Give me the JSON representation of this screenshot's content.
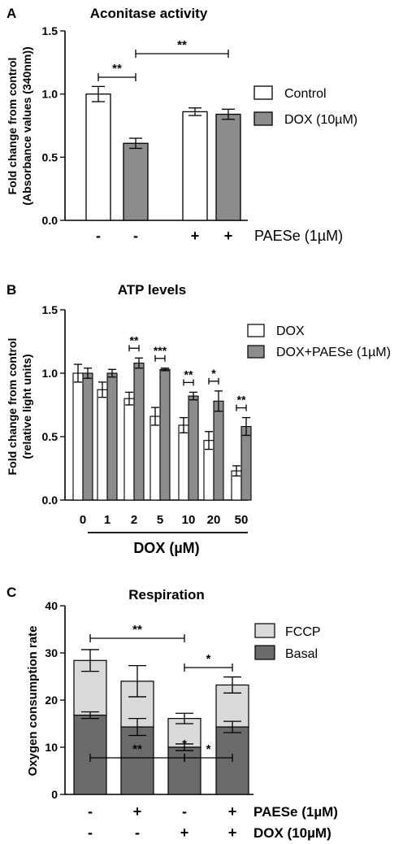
{
  "chart_data": [
    {
      "panel": "A",
      "type": "bar",
      "title": "Aconitase activity",
      "ylabel": "Fold change from control\n(Absorbance values (340nm))",
      "ylim": [
        0,
        1.5
      ],
      "yticks": [
        "0.0",
        "0.5",
        "1.0",
        "1.5"
      ],
      "bars": [
        {
          "group": "Control",
          "value": 1.0,
          "err": 0.06
        },
        {
          "group": "DOX (10µM)",
          "value": 0.61,
          "err": 0.04
        },
        {
          "group": "Control",
          "value": 0.86,
          "err": 0.03
        },
        {
          "group": "DOX (10µM)",
          "value": 0.84,
          "err": 0.04
        }
      ],
      "treatment_row": {
        "label": "PAESe (1µM)",
        "values": [
          "-",
          "-",
          "+",
          "+"
        ]
      },
      "legend": [
        {
          "name": "Control",
          "color": "#ffffff"
        },
        {
          "name": "DOX (10µM)",
          "color": "#8c8c8c"
        }
      ],
      "significance": [
        {
          "text": "**",
          "between": [
            0,
            1
          ]
        },
        {
          "text": "**",
          "between": [
            1,
            3
          ]
        }
      ]
    },
    {
      "panel": "B",
      "type": "bar",
      "title": "ATP levels",
      "ylabel": "Fold change from control\n(relative light units)",
      "xlabel": "DOX (µM)",
      "ylim": [
        0,
        1.5
      ],
      "yticks": [
        "0.0",
        "0.5",
        "1.0",
        "1.5"
      ],
      "categories": [
        "0",
        "1",
        "2",
        "5",
        "10",
        "20",
        "50"
      ],
      "series": [
        {
          "name": "DOX",
          "color": "#ffffff",
          "values": [
            1.0,
            0.87,
            0.8,
            0.66,
            0.59,
            0.47,
            0.23
          ],
          "err": [
            0.07,
            0.06,
            0.05,
            0.07,
            0.06,
            0.07,
            0.04
          ]
        },
        {
          "name": "DOX+PAESe (1µM)",
          "color": "#8c8c8c",
          "values": [
            1.0,
            1.0,
            1.08,
            1.03,
            0.82,
            0.78,
            0.58
          ],
          "err": [
            0.04,
            0.03,
            0.04,
            0.01,
            0.03,
            0.08,
            0.07
          ]
        }
      ],
      "significance": [
        {
          "category": 2,
          "text": "**"
        },
        {
          "category": 3,
          "text": "***"
        },
        {
          "category": 4,
          "text": "**"
        },
        {
          "category": 5,
          "text": "*"
        },
        {
          "category": 6,
          "text": "**"
        }
      ]
    },
    {
      "panel": "C",
      "type": "bar",
      "stacked": true,
      "title": "Respiration",
      "ylabel": "Oxygen consumption rate",
      "ylim": [
        0,
        40
      ],
      "yticks": [
        "0",
        "10",
        "20",
        "30",
        "40"
      ],
      "series": [
        {
          "name": "Basal",
          "color": "#6b6b6b",
          "values": [
            16.8,
            14.3,
            10.0,
            14.3
          ],
          "err": [
            0.7,
            1.8,
            0.7,
            1.2
          ]
        },
        {
          "name": "FCCP",
          "color": "#d9d9d9",
          "totals": [
            28.4,
            24.0,
            16.1,
            23.2
          ],
          "err": [
            2.3,
            3.3,
            1.1,
            1.7
          ]
        }
      ],
      "legend": [
        {
          "name": "FCCP",
          "color": "#d9d9d9"
        },
        {
          "name": "Basal",
          "color": "#6b6b6b"
        }
      ],
      "treatment_rows": [
        {
          "label": "PAESe (1µM)",
          "values": [
            "-",
            "+",
            "-",
            "+"
          ]
        },
        {
          "label": "DOX (10µM)",
          "values": [
            "-",
            "-",
            "+",
            "+"
          ]
        }
      ],
      "significance": [
        {
          "text": "**",
          "between": [
            0,
            2
          ],
          "level": "top"
        },
        {
          "text": "*",
          "between": [
            2,
            3
          ],
          "level": "top"
        },
        {
          "text": "**",
          "between": [
            0,
            2
          ],
          "level": "basal"
        },
        {
          "text": "*",
          "between": [
            2,
            3
          ],
          "level": "basal"
        },
        {
          "text": "*",
          "between": [
            2,
            2
          ],
          "level": "basal"
        }
      ]
    }
  ],
  "panel_letters": [
    "A",
    "B",
    "C"
  ]
}
